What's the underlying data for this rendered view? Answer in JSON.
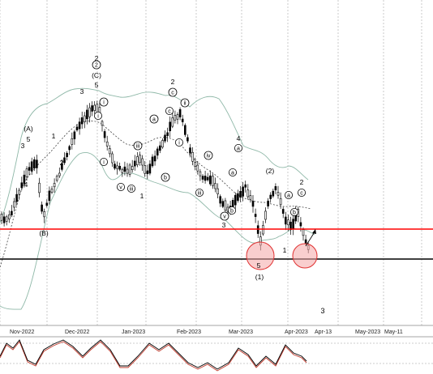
{
  "chart_data": {
    "type": "candlestick",
    "x_ticks": [
      "Nov-2022",
      "Dec-2022",
      "Jan-2023",
      "Feb-2023",
      "Mar-2023",
      "Apr-2023",
      "Apr-13",
      "May-2023",
      "May-11"
    ],
    "horizontal_lines": [
      {
        "name": "resistance",
        "color": "#ff0000"
      },
      {
        "name": "support",
        "color": "#000000"
      }
    ],
    "indicators": [
      "bollinger-bands",
      "moving-average",
      "stochastic-oscillator"
    ],
    "wave_labels": [
      {
        "text": "(A)"
      },
      {
        "text": "5"
      },
      {
        "text": "3"
      },
      {
        "text": "4"
      },
      {
        "text": "1"
      },
      {
        "text": "2"
      },
      {
        "text": "(B)"
      },
      {
        "text": "3"
      },
      {
        "text": "5"
      },
      {
        "text": "2"
      },
      {
        "text": "(C)"
      },
      {
        "text": "1"
      },
      {
        "text": "2"
      },
      {
        "text": "3"
      },
      {
        "text": "4"
      },
      {
        "text": "(2)"
      },
      {
        "text": "2"
      },
      {
        "text": "5"
      },
      {
        "text": "(1)"
      },
      {
        "text": "1"
      },
      {
        "text": "3"
      }
    ],
    "circled_labels": [
      "i",
      "ii",
      "iii",
      "iv",
      "v",
      "a",
      "b",
      "c",
      "2"
    ],
    "colors": {
      "bollinger": "#8fb8a8",
      "ma": "#444444",
      "resistance": "#ff0000",
      "support": "#000000",
      "highlight": "#f4a6a6",
      "stoch_k": "#000000",
      "stoch_d": "#c0392b"
    }
  }
}
